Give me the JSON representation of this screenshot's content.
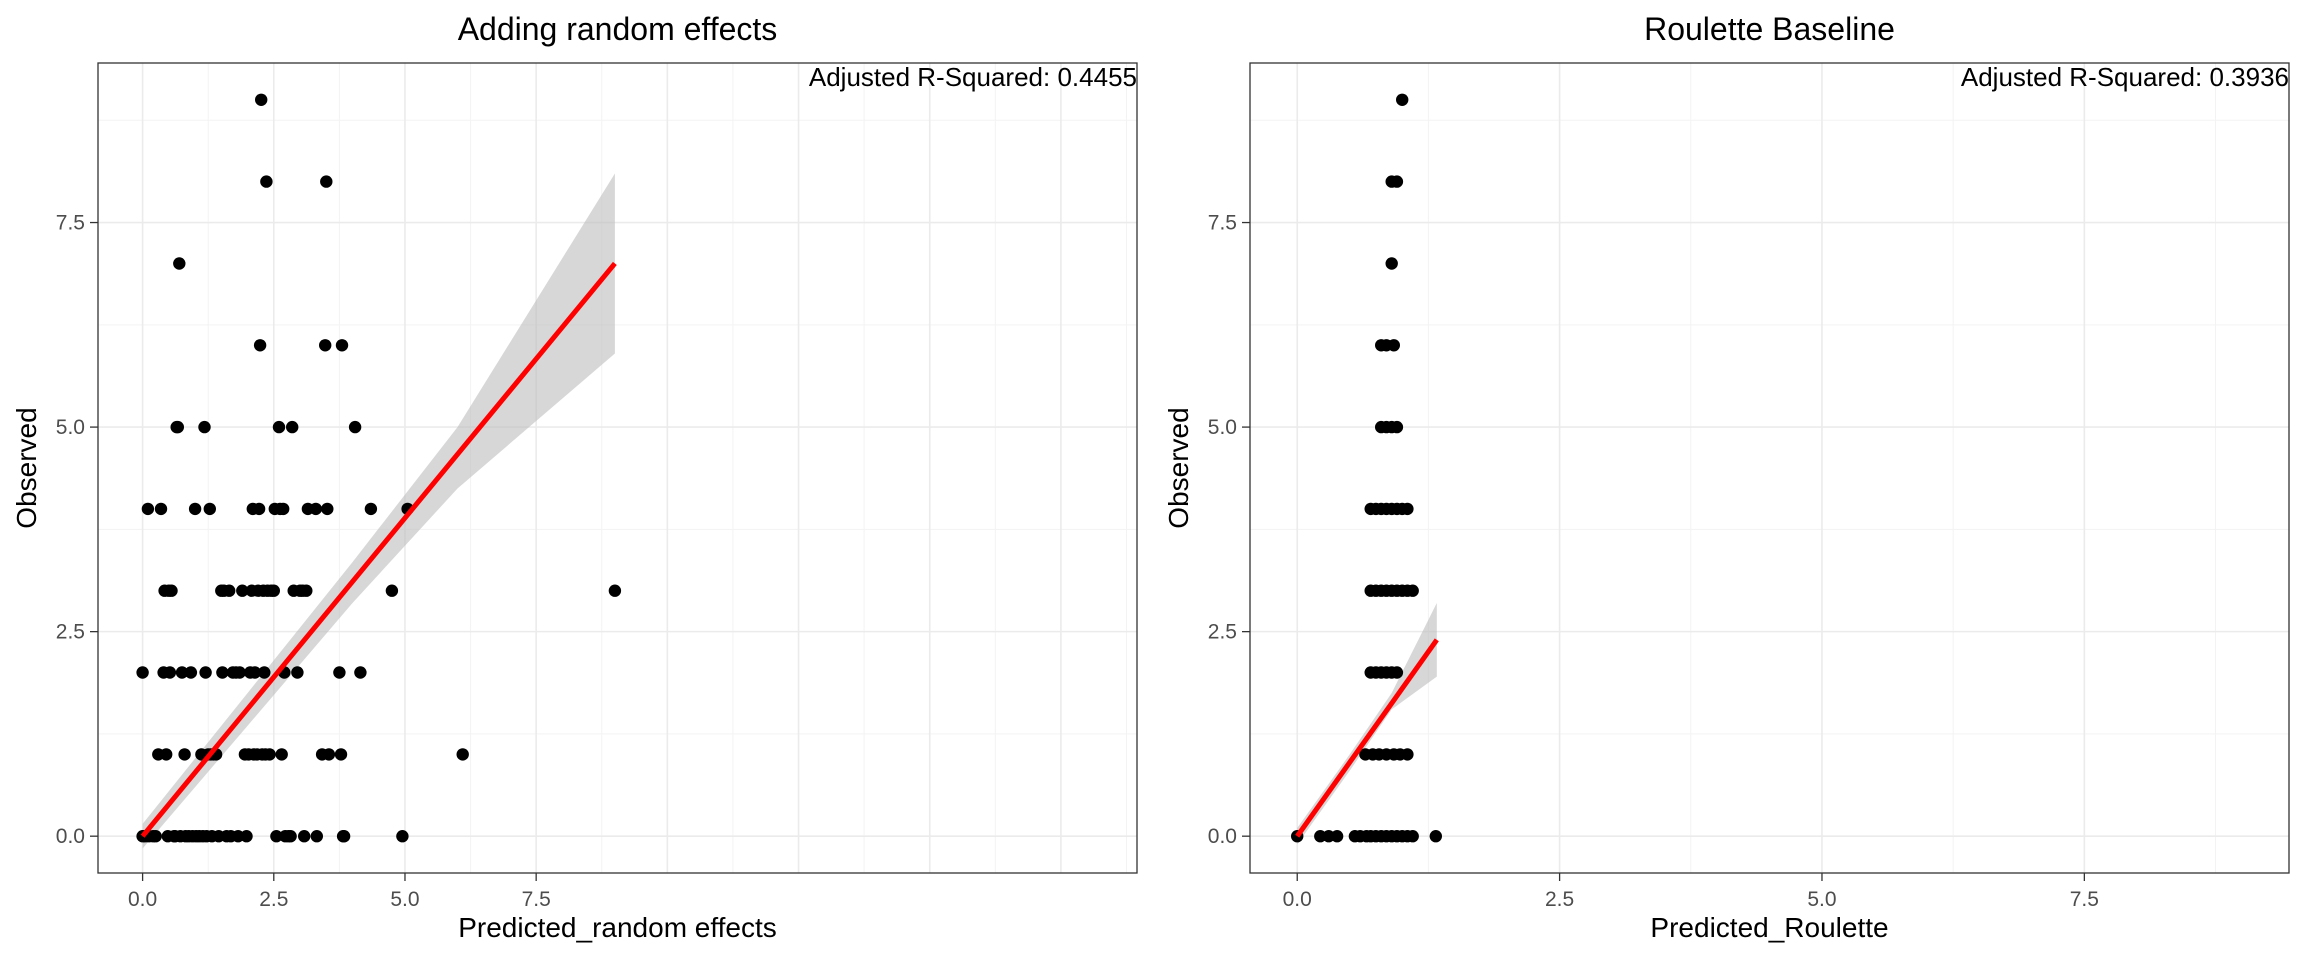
{
  "chart_data": [
    {
      "type": "scatter",
      "title": "Adding random effects",
      "xlabel": "Predicted_random effects",
      "ylabel": "Observed",
      "xlim": [
        -0.85,
        18.95
      ],
      "ylim": [
        -0.45,
        9.45
      ],
      "xticks": [
        0.0,
        2.5,
        5.0,
        7.5
      ],
      "xtick_labels": [
        "0.0",
        "2.5",
        "5.0",
        "7.5"
      ],
      "yticks": [
        0.0,
        2.5,
        5.0,
        7.5
      ],
      "ytick_labels": [
        "0.0",
        "2.5",
        "5.0",
        "7.5"
      ],
      "grid": true,
      "annotation": "Adjusted R-Squared: 0.4455",
      "colors": {
        "points": "#000000",
        "fit_line": "#ff0000",
        "band": "#bdbdbd"
      },
      "points": [
        [
          0.0,
          0
        ],
        [
          0.0,
          2
        ],
        [
          0.05,
          0
        ],
        [
          0.12,
          0
        ],
        [
          0.2,
          0
        ],
        [
          0.25,
          0
        ],
        [
          0.1,
          4
        ],
        [
          0.3,
          1
        ],
        [
          0.35,
          4
        ],
        [
          0.4,
          2
        ],
        [
          0.42,
          3
        ],
        [
          0.45,
          1
        ],
        [
          0.48,
          0
        ],
        [
          0.5,
          3
        ],
        [
          0.52,
          2
        ],
        [
          0.55,
          3
        ],
        [
          0.6,
          0
        ],
        [
          0.65,
          5
        ],
        [
          0.67,
          5
        ],
        [
          0.7,
          7
        ],
        [
          0.62,
          0
        ],
        [
          0.72,
          0
        ],
        [
          0.75,
          2
        ],
        [
          0.8,
          1
        ],
        [
          0.82,
          0
        ],
        [
          0.88,
          0
        ],
        [
          0.92,
          2
        ],
        [
          0.95,
          0
        ],
        [
          1.0,
          4
        ],
        [
          1.02,
          0
        ],
        [
          1.08,
          0
        ],
        [
          1.12,
          1
        ],
        [
          1.15,
          0
        ],
        [
          1.18,
          5
        ],
        [
          1.2,
          2
        ],
        [
          1.22,
          0
        ],
        [
          1.25,
          1
        ],
        [
          1.28,
          4
        ],
        [
          1.3,
          1
        ],
        [
          1.35,
          1
        ],
        [
          1.32,
          0
        ],
        [
          1.4,
          1
        ],
        [
          1.45,
          0
        ],
        [
          1.5,
          3
        ],
        [
          1.52,
          2
        ],
        [
          1.55,
          3
        ],
        [
          1.6,
          0
        ],
        [
          1.65,
          3
        ],
        [
          1.68,
          0
        ],
        [
          1.72,
          2
        ],
        [
          1.78,
          2
        ],
        [
          1.82,
          0
        ],
        [
          1.85,
          2
        ],
        [
          1.9,
          3
        ],
        [
          1.95,
          1
        ],
        [
          1.98,
          0
        ],
        [
          2.02,
          1
        ],
        [
          2.05,
          2
        ],
        [
          2.08,
          3
        ],
        [
          2.1,
          4
        ],
        [
          2.12,
          1
        ],
        [
          2.14,
          2
        ],
        [
          2.18,
          1
        ],
        [
          2.2,
          3
        ],
        [
          2.22,
          4
        ],
        [
          2.24,
          6
        ],
        [
          2.26,
          9
        ],
        [
          2.28,
          1
        ],
        [
          2.3,
          3
        ],
        [
          2.32,
          2
        ],
        [
          2.34,
          1
        ],
        [
          2.36,
          8
        ],
        [
          2.38,
          3
        ],
        [
          2.42,
          1
        ],
        [
          2.45,
          3
        ],
        [
          2.5,
          3
        ],
        [
          2.52,
          4
        ],
        [
          2.55,
          0
        ],
        [
          2.6,
          5
        ],
        [
          2.62,
          4
        ],
        [
          2.65,
          1
        ],
        [
          2.68,
          4
        ],
        [
          2.7,
          2
        ],
        [
          2.72,
          0
        ],
        [
          2.78,
          0
        ],
        [
          2.82,
          0
        ],
        [
          2.85,
          5
        ],
        [
          2.88,
          3
        ],
        [
          2.95,
          2
        ],
        [
          3.0,
          3
        ],
        [
          3.05,
          3
        ],
        [
          3.08,
          0
        ],
        [
          3.12,
          3
        ],
        [
          3.15,
          4
        ],
        [
          3.3,
          4
        ],
        [
          3.32,
          0
        ],
        [
          3.42,
          1
        ],
        [
          3.48,
          6
        ],
        [
          3.5,
          8
        ],
        [
          3.52,
          4
        ],
        [
          3.55,
          1
        ],
        [
          3.75,
          2
        ],
        [
          3.78,
          1
        ],
        [
          3.8,
          6
        ],
        [
          3.82,
          0
        ],
        [
          3.84,
          0
        ],
        [
          4.05,
          5
        ],
        [
          4.15,
          2
        ],
        [
          4.35,
          4
        ],
        [
          4.75,
          3
        ],
        [
          4.95,
          0
        ],
        [
          5.05,
          4
        ],
        [
          6.1,
          1
        ],
        [
          9.0,
          3
        ]
      ],
      "fit": {
        "x": [
          0.0,
          9.0
        ],
        "y": [
          0.0,
          7.0
        ]
      },
      "band": {
        "x": [
          0.0,
          2.0,
          4.0,
          6.0,
          9.0
        ],
        "lower": [
          -0.15,
          1.35,
          2.85,
          4.25,
          5.9
        ],
        "upper": [
          0.15,
          1.75,
          3.35,
          5.0,
          8.1
        ]
      }
    },
    {
      "type": "scatter",
      "title": "Roulette Baseline",
      "xlabel": "Predicted_Roulette",
      "ylabel": "Observed",
      "xlim": [
        -0.45,
        9.45
      ],
      "ylim": [
        -0.45,
        9.45
      ],
      "xticks": [
        0.0,
        2.5,
        5.0,
        7.5
      ],
      "xtick_labels": [
        "0.0",
        "2.5",
        "5.0",
        "7.5"
      ],
      "yticks": [
        0.0,
        2.5,
        5.0,
        7.5
      ],
      "ytick_labels": [
        "0.0",
        "2.5",
        "5.0",
        "7.5"
      ],
      "grid": true,
      "annotation": "Adjusted R-Squared: 0.3936",
      "colors": {
        "points": "#000000",
        "fit_line": "#ff0000",
        "band": "#bdbdbd"
      },
      "points": [
        [
          0.0,
          0
        ],
        [
          0.22,
          0
        ],
        [
          0.3,
          0
        ],
        [
          0.38,
          0
        ],
        [
          0.55,
          0
        ],
        [
          0.6,
          0
        ],
        [
          0.66,
          0
        ],
        [
          0.7,
          0
        ],
        [
          0.75,
          0
        ],
        [
          0.8,
          0
        ],
        [
          0.85,
          0
        ],
        [
          0.9,
          0
        ],
        [
          0.95,
          0
        ],
        [
          1.0,
          0
        ],
        [
          1.05,
          0
        ],
        [
          1.1,
          0
        ],
        [
          1.32,
          0
        ],
        [
          0.65,
          1
        ],
        [
          0.72,
          1
        ],
        [
          0.78,
          1
        ],
        [
          0.85,
          1
        ],
        [
          0.92,
          1
        ],
        [
          0.98,
          1
        ],
        [
          1.05,
          1
        ],
        [
          0.7,
          2
        ],
        [
          0.75,
          2
        ],
        [
          0.8,
          2
        ],
        [
          0.85,
          2
        ],
        [
          0.9,
          2
        ],
        [
          0.95,
          2
        ],
        [
          0.7,
          3
        ],
        [
          0.75,
          3
        ],
        [
          0.8,
          3
        ],
        [
          0.85,
          3
        ],
        [
          0.9,
          3
        ],
        [
          0.95,
          3
        ],
        [
          1.0,
          3
        ],
        [
          1.05,
          3
        ],
        [
          1.1,
          3
        ],
        [
          0.7,
          4
        ],
        [
          0.75,
          4
        ],
        [
          0.8,
          4
        ],
        [
          0.85,
          4
        ],
        [
          0.9,
          4
        ],
        [
          0.95,
          4
        ],
        [
          1.0,
          4
        ],
        [
          1.05,
          4
        ],
        [
          0.8,
          5
        ],
        [
          0.85,
          5
        ],
        [
          0.9,
          5
        ],
        [
          0.95,
          5
        ],
        [
          0.8,
          6
        ],
        [
          0.85,
          6
        ],
        [
          0.92,
          6
        ],
        [
          0.9,
          7
        ],
        [
          0.9,
          8
        ],
        [
          0.95,
          8
        ],
        [
          1.0,
          9
        ]
      ],
      "fit": {
        "x": [
          0.0,
          1.33
        ],
        "y": [
          0.0,
          2.4
        ]
      },
      "band": {
        "x": [
          0.0,
          0.5,
          0.9,
          1.33
        ],
        "lower": [
          -0.1,
          0.8,
          1.55,
          1.95
        ],
        "upper": [
          0.1,
          1.0,
          1.75,
          2.85
        ]
      }
    }
  ]
}
